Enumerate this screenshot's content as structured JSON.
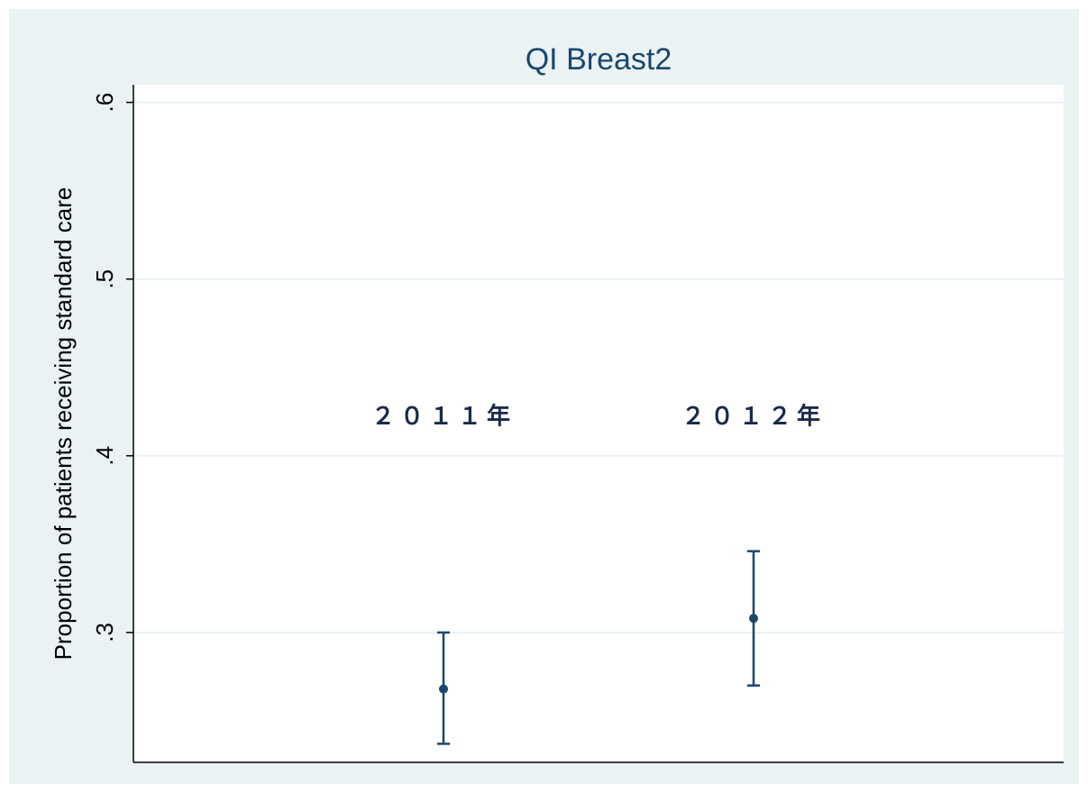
{
  "chart_data": {
    "type": "errorbar",
    "title": "QI Breast2",
    "y_label": "Proportion of patients receiving standard care",
    "categories": [
      "２０１１年",
      "２０１２年"
    ],
    "values": [
      0.268,
      0.308
    ],
    "lower": [
      0.237,
      0.27
    ],
    "upper": [
      0.3,
      0.346
    ],
    "color": "#1a476f",
    "ylim": [
      0.2265,
      0.61
    ],
    "yticks": [
      {
        "value": 0.3,
        "label": ".3"
      },
      {
        "value": 0.4,
        "label": ".4"
      },
      {
        "value": 0.5,
        "label": ".5"
      },
      {
        "value": 0.6,
        "label": ".6"
      }
    ],
    "grid": true
  }
}
